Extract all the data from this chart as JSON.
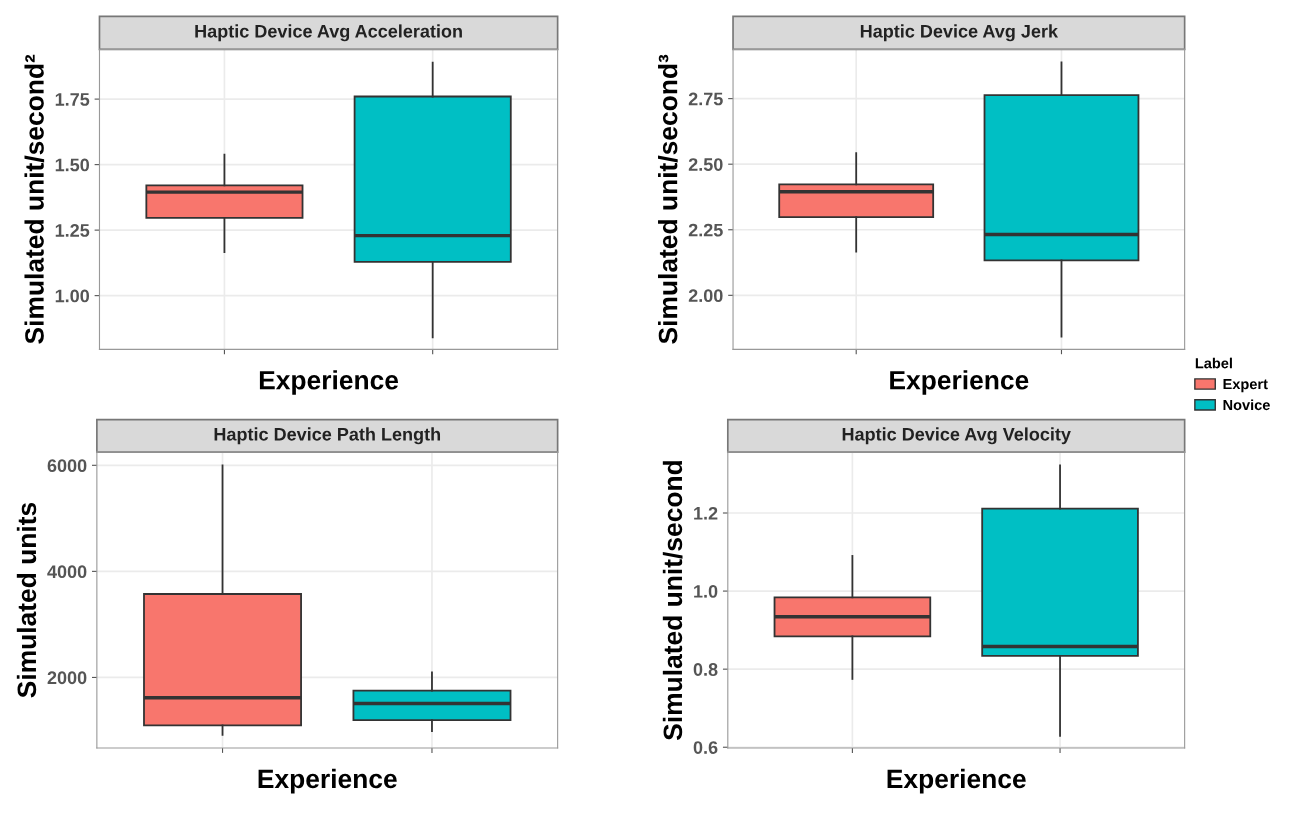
{
  "chart_data": [
    {
      "type": "box",
      "title": "Haptic Device Avg Acceleration",
      "xlabel": "Experience",
      "ylabel": "Simulated unit/second²",
      "categories": [
        null,
        null
      ],
      "ylim": [
        0.795,
        1.94
      ],
      "yticks": [
        {
          "value": 1.0,
          "label": "1.00"
        },
        {
          "value": 1.25,
          "label": "1.25"
        },
        {
          "value": 1.5,
          "label": "1.50"
        },
        {
          "value": 1.75,
          "label": "1.75"
        }
      ],
      "grid": true,
      "series": [
        {
          "color": "#f8766d",
          "boxes": [
            {
              "low": 1.166,
              "q1": 1.297,
              "median": 1.395,
              "q3": 1.421,
              "high": 1.538
            },
            null
          ]
        },
        {
          "color": "#00bfc4",
          "boxes": [
            null,
            {
              "low": 0.841,
              "q1": 1.129,
              "median": 1.229,
              "q3": 1.76,
              "high": 1.889
            }
          ]
        }
      ]
    },
    {
      "type": "box",
      "title": "Haptic Device Avg Jerk",
      "xlabel": "Experience",
      "ylabel": "Simulated unit/second³",
      "categories": [
        null,
        null
      ],
      "ylim": [
        1.794,
        2.938
      ],
      "yticks": [
        {
          "value": 2.0,
          "label": "2.00"
        },
        {
          "value": 2.25,
          "label": "2.25"
        },
        {
          "value": 2.5,
          "label": "2.50"
        },
        {
          "value": 2.75,
          "label": "2.75"
        }
      ],
      "grid": true,
      "legend": "right",
      "legend_title": "Label",
      "series": [
        {
          "name": "Expert",
          "color": "#f8766d",
          "boxes": [
            {
              "low": 2.167,
              "q1": 2.298,
              "median": 2.395,
              "q3": 2.423,
              "high": 2.542
            },
            null
          ]
        },
        {
          "name": "Novice",
          "color": "#00bfc4",
          "boxes": [
            null,
            {
              "low": 1.843,
              "q1": 2.133,
              "median": 2.232,
              "q3": 2.763,
              "high": 2.888
            }
          ]
        }
      ]
    },
    {
      "type": "box",
      "title": "Haptic Device Path Length",
      "xlabel": "Experience",
      "ylabel": "Simulated units",
      "categories": [
        null,
        null
      ],
      "ylim": [
        669,
        6249
      ],
      "yticks": [
        2000,
        4000,
        6000
      ],
      "grid": true,
      "series": [
        {
          "color": "#f8766d",
          "boxes": [
            {
              "low": 918,
              "q1": 1096,
              "median": 1616,
              "q3": 3573,
              "high": 6000
            },
            null
          ]
        },
        {
          "color": "#00bfc4",
          "boxes": [
            null,
            {
              "low": 989,
              "q1": 1196,
              "median": 1509,
              "q3": 1751,
              "high": 2093
            }
          ]
        }
      ]
    },
    {
      "type": "box",
      "title": "Haptic Device Avg Velocity",
      "xlabel": "Experience",
      "ylabel": "Simulated unit/second",
      "categories": [
        null,
        null
      ],
      "ylim": [
        0.598,
        1.356
      ],
      "yticks": [
        {
          "value": 0.6,
          "label": "0.6"
        },
        {
          "value": 0.8,
          "label": "0.8"
        },
        {
          "value": 1.0,
          "label": "1.0"
        },
        {
          "value": 1.2,
          "label": "1.2"
        }
      ],
      "grid": true,
      "series": [
        {
          "color": "#f8766d",
          "boxes": [
            {
              "low": 0.775,
              "q1": 0.884,
              "median": 0.934,
              "q3": 0.984,
              "high": 1.09
            },
            null
          ]
        },
        {
          "color": "#00bfc4",
          "boxes": [
            null,
            {
              "low": 0.629,
              "q1": 0.834,
              "median": 0.858,
              "q3": 1.211,
              "high": 1.322
            }
          ]
        }
      ]
    }
  ]
}
